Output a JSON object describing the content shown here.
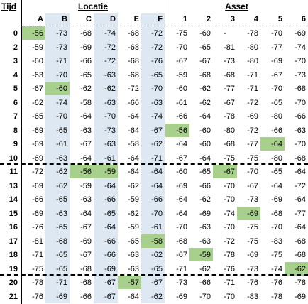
{
  "headers": {
    "tijd": "Tijd",
    "locatie": "Locatie",
    "asset": "Asset"
  },
  "locatie_cols": [
    "A",
    "B",
    "C",
    "D",
    "E",
    "F"
  ],
  "asset_cols": [
    "1",
    "2",
    "3",
    "4",
    "5",
    "6"
  ],
  "colors": {
    "blue": "#dde8f3",
    "green": "#a8d08d"
  },
  "rows": [
    {
      "t": "0",
      "loc": [
        "-56",
        "-73",
        "-68",
        "-74",
        "-68",
        "-72"
      ],
      "asset": [
        "-75",
        "-69",
        "-",
        "-78",
        "-70",
        "-69"
      ]
    },
    {
      "t": "2",
      "loc": [
        "-59",
        "-73",
        "-69",
        "-72",
        "-68",
        "-72"
      ],
      "asset": [
        "-70",
        "-65",
        "-81",
        "-80",
        "-77",
        "-74"
      ]
    },
    {
      "t": "3",
      "loc": [
        "-60",
        "-71",
        "-66",
        "-72",
        "-68",
        "-76"
      ],
      "asset": [
        "-67",
        "-67",
        "-73",
        "-80",
        "-69",
        "-70"
      ]
    },
    {
      "t": "4",
      "loc": [
        "-63",
        "-70",
        "-65",
        "-63",
        "-68",
        "-65"
      ],
      "asset": [
        "-59",
        "-68",
        "-68",
        "-71",
        "-67",
        "-73"
      ]
    },
    {
      "t": "5",
      "loc": [
        "-67",
        "-60",
        "-62",
        "-62",
        "-72",
        "-70"
      ],
      "asset": [
        "-60",
        "-62",
        "-77",
        "-71",
        "-70",
        "-68"
      ]
    },
    {
      "t": "6",
      "loc": [
        "-62",
        "-74",
        "-58",
        "-63",
        "-66",
        "-63"
      ],
      "asset": [
        "-61",
        "-62",
        "-67",
        "-72",
        "-65",
        "-70"
      ]
    },
    {
      "t": "7",
      "loc": [
        "-65",
        "-70",
        "-64",
        "-70",
        "-64",
        "-74"
      ],
      "asset": [
        "-66",
        "-64",
        "-78",
        "-69",
        "-80",
        "-66"
      ]
    },
    {
      "t": "8",
      "loc": [
        "-69",
        "-65",
        "-63",
        "-73",
        "-64",
        "-67"
      ],
      "asset": [
        "-56",
        "-60",
        "-80",
        "-72",
        "-66",
        "-63"
      ]
    },
    {
      "t": "9",
      "loc": [
        "-69",
        "-61",
        "-67",
        "-63",
        "-58",
        "-62"
      ],
      "asset": [
        "-64",
        "-60",
        "-68",
        "-77",
        "-64",
        "-70"
      ]
    },
    {
      "t": "10",
      "loc": [
        "-69",
        "-63",
        "-64",
        "-61",
        "-64",
        "-71"
      ],
      "asset": [
        "-67",
        "-64",
        "-75",
        "-75",
        "-80",
        "-68"
      ]
    },
    {
      "t": "11",
      "loc": [
        "-72",
        "-62",
        "-56",
        "-59",
        "-64",
        "-64"
      ],
      "asset": [
        "-60",
        "-65",
        "-67",
        "-70",
        "-65",
        "-64"
      ]
    },
    {
      "t": "13",
      "loc": [
        "-69",
        "-62",
        "-59",
        "-64",
        "-62",
        "-64"
      ],
      "asset": [
        "-69",
        "-66",
        "-70",
        "-67",
        "-64",
        "-72"
      ]
    },
    {
      "t": "14",
      "loc": [
        "-66",
        "-65",
        "-63",
        "-66",
        "-59",
        "-66"
      ],
      "asset": [
        "-64",
        "-62",
        "-70",
        "-73",
        "-69",
        "-64"
      ]
    },
    {
      "t": "15",
      "loc": [
        "-69",
        "-63",
        "-64",
        "-65",
        "-62",
        "-70"
      ],
      "asset": [
        "-64",
        "-69",
        "-74",
        "-69",
        "-68",
        "-77"
      ]
    },
    {
      "t": "16",
      "loc": [
        "-76",
        "-65",
        "-67",
        "-64",
        "-59",
        "-61"
      ],
      "asset": [
        "-70",
        "-63",
        "-70",
        "-75",
        "-70",
        "-64"
      ]
    },
    {
      "t": "17",
      "loc": [
        "-81",
        "-68",
        "-69",
        "-66",
        "-65",
        "-58"
      ],
      "asset": [
        "-68",
        "-63",
        "-72",
        "-75",
        "-83",
        "-68"
      ]
    },
    {
      "t": "18",
      "loc": [
        "-71",
        "-65",
        "-67",
        "-66",
        "-63",
        "-62"
      ],
      "asset": [
        "-67",
        "-59",
        "-78",
        "-69",
        "-75",
        "-68"
      ]
    },
    {
      "t": "19",
      "loc": [
        "-75",
        "-65",
        "-68",
        "-69",
        "-63",
        "-65"
      ],
      "asset": [
        "-71",
        "-62",
        "-76",
        "-73",
        "-74",
        "-62"
      ]
    },
    {
      "t": "20",
      "loc": [
        "-78",
        "-71",
        "-68",
        "-67",
        "-57",
        "-67"
      ],
      "asset": [
        "-73",
        "-66",
        "-71",
        "-76",
        "-76",
        "-78"
      ]
    },
    {
      "t": "21",
      "loc": [
        "-76",
        "-69",
        "-66",
        "-67",
        "-64",
        "-62"
      ],
      "asset": [
        "-69",
        "-70",
        "-70",
        "-83",
        "-78",
        "-69"
      ]
    }
  ],
  "highlights": [
    {
      "row": 0,
      "group": "loc",
      "col": 0
    },
    {
      "row": 4,
      "group": "loc",
      "col": 1
    },
    {
      "row": 7,
      "group": "asset",
      "col": 0
    },
    {
      "row": 8,
      "group": "asset",
      "col": 4
    },
    {
      "row": 10,
      "group": "loc",
      "col": 2
    },
    {
      "row": 10,
      "group": "loc",
      "col": 3
    },
    {
      "row": 10,
      "group": "asset",
      "col": 2
    },
    {
      "row": 13,
      "group": "asset",
      "col": 3
    },
    {
      "row": 15,
      "group": "loc",
      "col": 5
    },
    {
      "row": 16,
      "group": "asset",
      "col": 1
    },
    {
      "row": 17,
      "group": "asset",
      "col": 5
    },
    {
      "row": 18,
      "group": "loc",
      "col": 4
    }
  ]
}
